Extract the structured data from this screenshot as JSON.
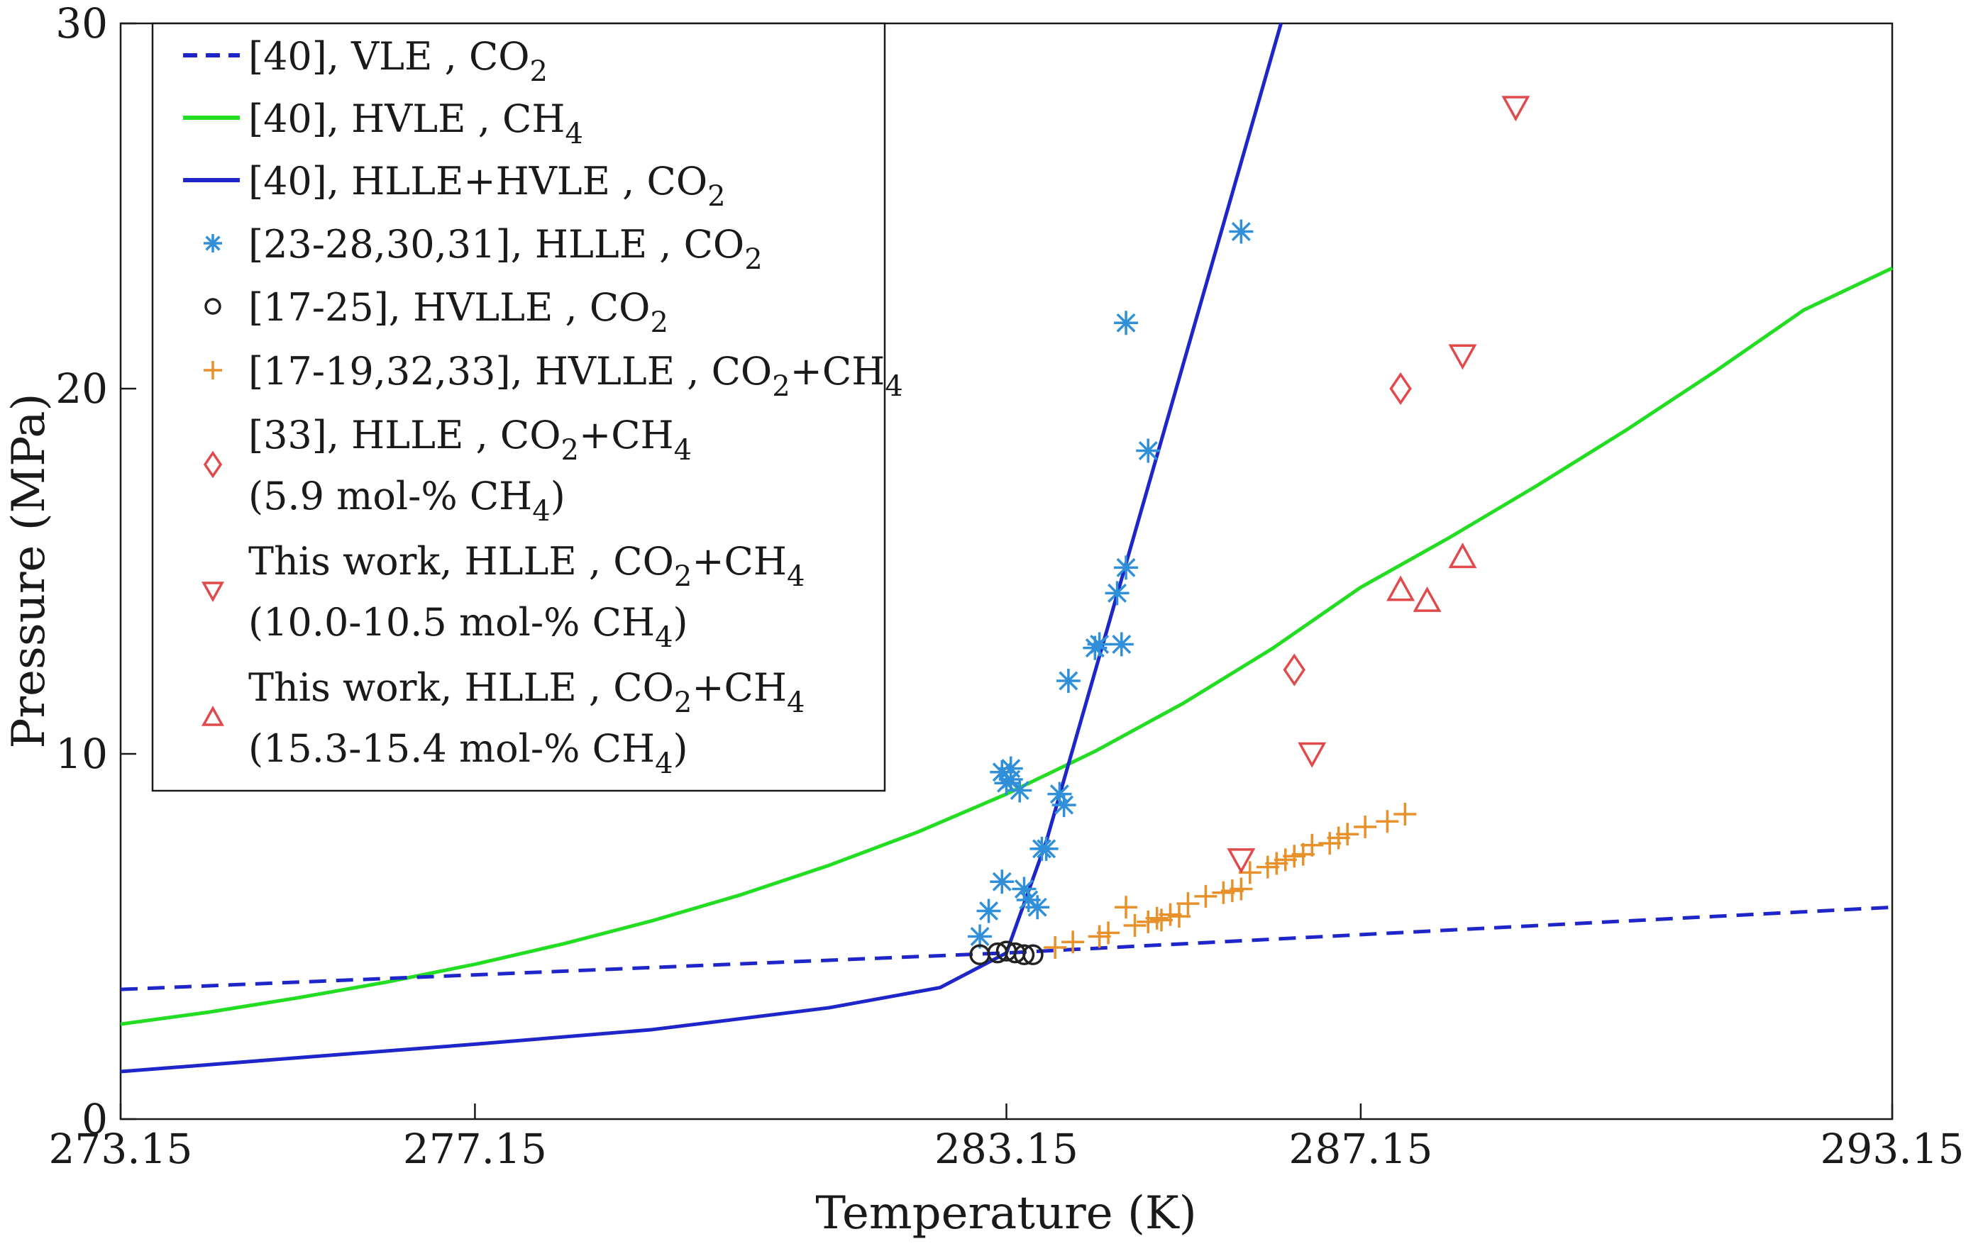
{
  "chart_data": {
    "type": "scatter",
    "title": "",
    "xlabel": "Temperature (K)",
    "ylabel": "Pressure (MPa)",
    "xlim": [
      273.15,
      293.15
    ],
    "ylim": [
      0,
      30
    ],
    "xticks": [
      273.15,
      277.15,
      283.15,
      287.15,
      293.15
    ],
    "xtick_labels": [
      "273.15",
      "277.15",
      "283.15",
      "287.15",
      "293.15"
    ],
    "yticks": [
      0,
      10,
      20,
      30
    ],
    "ytick_labels": [
      "0",
      "10",
      "20",
      "30"
    ],
    "grid": false,
    "legend_position": "top-left",
    "colors": {
      "vle_co2": "#1f26c9",
      "hvle_ch4": "#22dd22",
      "hlle_hvle_co2": "#1f26c9",
      "hlle_co2": "#2f8fd8",
      "hvlle_co2": "#222222",
      "hvlle_mix": "#e8902a",
      "red_markers": "#e04a4a"
    },
    "series": [
      {
        "id": "vle_co2",
        "name": "[40], VLE , CO2",
        "legend": {
          "parts": [
            {
              "t": "[40], VLE , CO"
            },
            {
              "t": "2",
              "sub": true
            }
          ]
        },
        "style": "dashed",
        "x": [
          273.15,
          283.15,
          293.15
        ],
        "y": [
          3.55,
          4.55,
          5.8
        ]
      },
      {
        "id": "hvle_ch4",
        "name": "[40], HVLE , CH4",
        "legend": {
          "parts": [
            {
              "t": "[40], HVLE , CH"
            },
            {
              "t": "4",
              "sub": true
            }
          ]
        },
        "style": "solid",
        "x": [
          273.15,
          274.15,
          275.15,
          276.15,
          277.15,
          278.15,
          279.15,
          280.15,
          281.15,
          282.15,
          283.15,
          284.15,
          285.15,
          286.15,
          287.15,
          288.15,
          289.15,
          290.15,
          291.15,
          292.15,
          293.15
        ],
        "y": [
          2.6,
          2.93,
          3.32,
          3.75,
          4.24,
          4.8,
          5.43,
          6.14,
          6.95,
          7.86,
          8.9,
          10.07,
          11.39,
          12.88,
          14.56,
          15.92,
          17.36,
          18.87,
          20.47,
          22.15,
          23.3
        ]
      },
      {
        "id": "hlle_hvle_co2",
        "name": "[40], HLLE+HVLE , CO2",
        "legend": {
          "parts": [
            {
              "t": "[40], HLLE+HVLE , CO"
            },
            {
              "t": "2",
              "sub": true
            }
          ]
        },
        "style": "solid",
        "x": [
          273.15,
          275.15,
          277.15,
          279.15,
          281.15,
          282.4,
          283.15,
          283.6,
          286.25
        ],
        "y": [
          1.3,
          1.68,
          2.05,
          2.45,
          3.05,
          3.6,
          4.55,
          7.6,
          30.0
        ]
      },
      {
        "id": "hlle_co2",
        "name": "[23-28,30,31], HLLE , CO2",
        "legend": {
          "parts": [
            {
              "t": "[23-28,30,31], HLLE , CO"
            },
            {
              "t": "2",
              "sub": true
            }
          ]
        },
        "marker": "asterisk",
        "x": [
          282.85,
          282.95,
          283.1,
          283.15,
          283.2,
          283.1,
          283.2,
          283.3,
          283.35,
          283.4,
          283.5,
          283.55,
          283.6,
          283.75,
          283.8,
          283.85,
          284.15,
          284.2,
          284.4,
          284.45,
          284.5,
          284.75,
          284.5,
          285.8
        ],
        "y": [
          5.0,
          5.7,
          6.5,
          9.2,
          9.3,
          9.5,
          9.6,
          9.0,
          6.3,
          6.0,
          5.8,
          7.4,
          7.4,
          8.9,
          8.6,
          12.0,
          12.9,
          13.0,
          14.4,
          13.0,
          15.1,
          18.3,
          21.8,
          24.3
        ]
      },
      {
        "id": "hvlle_co2",
        "name": "[17-25], HVLLE , CO2",
        "legend": {
          "parts": [
            {
              "t": "[17-25], HVLLE , CO"
            },
            {
              "t": "2",
              "sub": true
            }
          ]
        },
        "marker": "circle",
        "x": [
          282.85,
          283.05,
          283.15,
          283.25,
          283.35,
          283.45
        ],
        "y": [
          4.5,
          4.55,
          4.6,
          4.55,
          4.5,
          4.5
        ]
      },
      {
        "id": "hvlle_mix",
        "name": "[17-19,32,33], HVLLE , CO2+CH4",
        "legend": {
          "parts": [
            {
              "t": "[17-19,32,33], HVLLE , CO"
            },
            {
              "t": "2",
              "sub": true
            },
            {
              "t": "+CH"
            },
            {
              "t": "4",
              "sub": true
            }
          ]
        },
        "marker": "plus",
        "x": [
          283.7,
          283.9,
          284.2,
          284.3,
          284.5,
          284.6,
          284.75,
          284.85,
          284.9,
          285.0,
          285.1,
          285.2,
          285.4,
          285.6,
          285.7,
          285.8,
          285.9,
          286.1,
          286.2,
          286.3,
          286.4,
          286.5,
          286.6,
          286.8,
          286.9,
          287.0,
          287.2,
          287.45,
          287.65
        ],
        "y": [
          4.7,
          4.85,
          5.0,
          5.1,
          5.8,
          5.3,
          5.4,
          5.5,
          5.45,
          5.6,
          5.55,
          5.9,
          6.1,
          6.2,
          6.25,
          6.3,
          6.75,
          6.9,
          7.0,
          7.1,
          7.2,
          7.25,
          7.5,
          7.55,
          7.7,
          7.8,
          8.0,
          8.15,
          8.35
        ]
      },
      {
        "id": "hlle_59",
        "name": "[33], HLLE , CO2+CH4 (5.9 mol-% CH4)",
        "legend": {
          "parts": [
            {
              "t": "[33], HLLE , CO"
            },
            {
              "t": "2",
              "sub": true
            },
            {
              "t": "+CH"
            },
            {
              "t": "4",
              "sub": true
            }
          ],
          "line2": [
            {
              "t": "(5.9 mol-% CH"
            },
            {
              "t": "4",
              "sub": true
            },
            {
              "t": ")"
            }
          ]
        },
        "marker": "diamond",
        "x": [
          286.4,
          287.6
        ],
        "y": [
          12.3,
          20.0
        ]
      },
      {
        "id": "hlle_100",
        "name": "This work, HLLE , CO2+CH4 (10.0-10.5 mol-% CH4)",
        "legend": {
          "parts": [
            {
              "t": "This work, HLLE , CO"
            },
            {
              "t": "2",
              "sub": true
            },
            {
              "t": "+CH"
            },
            {
              "t": "4",
              "sub": true
            }
          ],
          "line2": [
            {
              "t": "(10.0-10.5 mol-% CH"
            },
            {
              "t": "4",
              "sub": true
            },
            {
              "t": ")"
            }
          ]
        },
        "marker": "triangle-down",
        "x": [
          285.8,
          286.6,
          288.3,
          288.9
        ],
        "y": [
          7.1,
          10.0,
          20.9,
          27.7
        ]
      },
      {
        "id": "hlle_153",
        "name": "This work, HLLE , CO2+CH4 (15.3-15.4 mol-% CH4)",
        "legend": {
          "parts": [
            {
              "t": "This work, HLLE , CO"
            },
            {
              "t": "2",
              "sub": true
            },
            {
              "t": "+CH"
            },
            {
              "t": "4",
              "sub": true
            }
          ],
          "line2": [
            {
              "t": "(15.3-15.4 mol-% CH"
            },
            {
              "t": "4",
              "sub": true
            },
            {
              "t": ")"
            }
          ]
        },
        "marker": "triangle-up",
        "x": [
          287.6,
          287.9,
          288.3
        ],
        "y": [
          14.5,
          14.2,
          15.4
        ]
      }
    ]
  }
}
